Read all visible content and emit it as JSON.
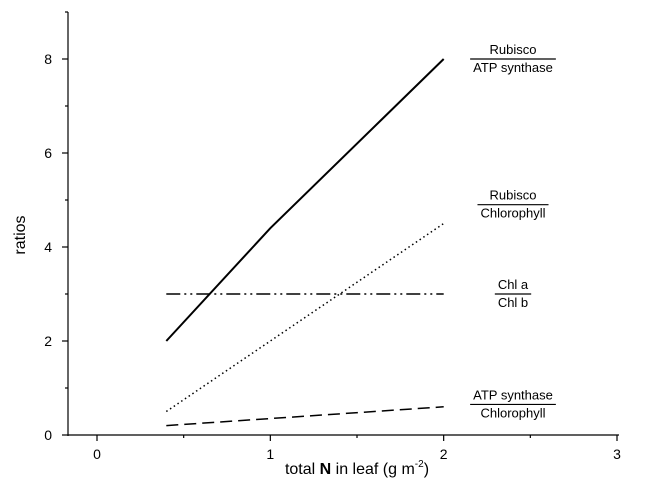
{
  "chart_data": {
    "type": "line",
    "title": "",
    "xlabel": {
      "pre": "total ",
      "bold": "N",
      "post": " in leaf (g m",
      "sup": "-2",
      "end": ")"
    },
    "ylabel": "ratios",
    "xlim": [
      0,
      3
    ],
    "ylim": [
      0,
      9
    ],
    "xticks": [
      0,
      1,
      2,
      3
    ],
    "yticks": [
      0,
      2,
      4,
      6,
      8
    ],
    "grid": false,
    "legend": "inline labels at right end of each line",
    "series": [
      {
        "id": "rubisco-atp",
        "numerator": "Rubisco",
        "denominator": "ATP synthase",
        "style": "solid",
        "color": "#000000",
        "x": [
          0.4,
          1.0,
          2.0
        ],
        "y": [
          2.0,
          4.4,
          8.0
        ]
      },
      {
        "id": "rubisco-chl",
        "numerator": "Rubisco",
        "denominator": "Chlorophyll",
        "style": "dotted",
        "color": "#000000",
        "x": [
          0.4,
          2.0
        ],
        "y": [
          0.5,
          4.5
        ]
      },
      {
        "id": "chla-chlb",
        "numerator": "Chl a",
        "denominator": "Chl b",
        "style": "dash-dot-dot",
        "color": "#000000",
        "x": [
          0.4,
          2.0
        ],
        "y": [
          3.0,
          3.0
        ]
      },
      {
        "id": "atp-chl",
        "numerator": "ATP synthase",
        "denominator": "Chlorophyll",
        "style": "dashed",
        "color": "#000000",
        "x": [
          0.4,
          2.0
        ],
        "y": [
          0.2,
          0.6
        ]
      }
    ]
  }
}
